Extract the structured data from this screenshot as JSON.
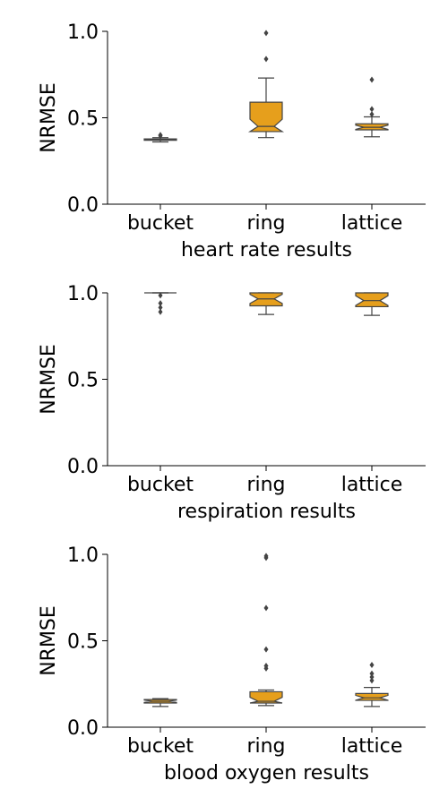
{
  "colors": {
    "box_fill": "#E69F1C",
    "line": "#444444",
    "axis": "#000000"
  },
  "chart_data": [
    {
      "type": "box",
      "xlabel": "heart rate results",
      "ylabel": "NRMSE",
      "ylim": [
        0,
        1
      ],
      "yticks": [
        "0.0",
        "0.5",
        "1.0"
      ],
      "categories": [
        "bucket",
        "ring",
        "lattice"
      ],
      "boxes": [
        {
          "category": "bucket",
          "whislo": 0.36,
          "q1": 0.37,
          "med": 0.375,
          "q3": 0.378,
          "whishi": 0.385,
          "fliers": [
            0.395,
            0.4
          ]
        },
        {
          "category": "ring",
          "whislo": 0.385,
          "q1": 0.42,
          "med": 0.45,
          "q3": 0.59,
          "whishi": 0.73,
          "fliers": [
            0.84,
            0.99
          ]
        },
        {
          "category": "lattice",
          "whislo": 0.39,
          "q1": 0.43,
          "med": 0.445,
          "q3": 0.465,
          "whishi": 0.505,
          "fliers": [
            0.52,
            0.55,
            0.72
          ]
        }
      ]
    },
    {
      "type": "box",
      "xlabel": "respiration results",
      "ylabel": "NRMSE",
      "ylim": [
        0,
        1
      ],
      "yticks": [
        "0.0",
        "0.5",
        "1.0"
      ],
      "categories": [
        "bucket",
        "ring",
        "lattice"
      ],
      "boxes": [
        {
          "category": "bucket",
          "whislo": 1.0,
          "q1": 1.0,
          "med": 1.0,
          "q3": 1.0,
          "whishi": 1.0,
          "fliers": [
            0.985,
            0.94,
            0.915,
            0.89
          ]
        },
        {
          "category": "ring",
          "whislo": 0.875,
          "q1": 0.925,
          "med": 0.965,
          "q3": 1.0,
          "whishi": 1.0,
          "fliers": []
        },
        {
          "category": "lattice",
          "whislo": 0.87,
          "q1": 0.92,
          "med": 0.955,
          "q3": 1.0,
          "whishi": 1.0,
          "fliers": []
        }
      ]
    },
    {
      "type": "box",
      "xlabel": "blood oxygen results",
      "ylabel": "NRMSE",
      "ylim": [
        0,
        1
      ],
      "yticks": [
        "0.0",
        "0.5",
        "1.0"
      ],
      "categories": [
        "bucket",
        "ring",
        "lattice"
      ],
      "boxes": [
        {
          "category": "bucket",
          "whislo": 0.12,
          "q1": 0.14,
          "med": 0.15,
          "q3": 0.16,
          "whishi": 0.165,
          "fliers": []
        },
        {
          "category": "ring",
          "whislo": 0.125,
          "q1": 0.14,
          "med": 0.15,
          "q3": 0.205,
          "whishi": 0.215,
          "fliers": [
            0.34,
            0.355,
            0.45,
            0.69,
            0.98,
            0.99
          ]
        },
        {
          "category": "lattice",
          "whislo": 0.12,
          "q1": 0.155,
          "med": 0.17,
          "q3": 0.195,
          "whishi": 0.23,
          "fliers": [
            0.27,
            0.29,
            0.31,
            0.36
          ]
        }
      ]
    }
  ]
}
